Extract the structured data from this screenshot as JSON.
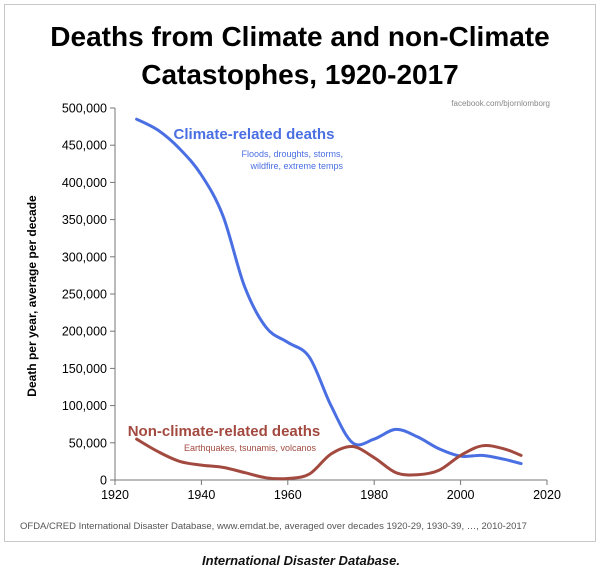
{
  "caption": "International Disaster Database.",
  "chart_data": {
    "type": "line",
    "title_lines": [
      "Deaths from Climate and non-Climate",
      "Catastophes, 1920-2017"
    ],
    "watermark": "facebook.com/bjornlomborg",
    "ylabel": "Death per year, average per decade",
    "xlabel": "",
    "xlim": [
      1920,
      2020
    ],
    "ylim": [
      0,
      500000
    ],
    "x_ticks": [
      1920,
      1940,
      1960,
      1980,
      2000,
      2020
    ],
    "y_ticks": [
      0,
      50000,
      100000,
      150000,
      200000,
      250000,
      300000,
      350000,
      400000,
      450000,
      500000
    ],
    "y_tick_labels": [
      "0",
      "50,000",
      "100,000",
      "150,000",
      "200,000",
      "250,000",
      "300,000",
      "350,000",
      "400,000",
      "450,000",
      "500,000"
    ],
    "grid": false,
    "series": [
      {
        "name": "Climate-related deaths",
        "subtitle_lines": [
          "Floods, droughts, storms,",
          "wildfire, extreme temps"
        ],
        "color": "#4a6fe3",
        "x": [
          1925,
          1930,
          1935,
          1940,
          1945,
          1950,
          1955,
          1960,
          1965,
          1970,
          1975,
          1980,
          1985,
          1990,
          1995,
          2000,
          2005,
          2010,
          2014
        ],
        "values": [
          485000,
          470000,
          445000,
          410000,
          355000,
          260000,
          205000,
          185000,
          165000,
          100000,
          50000,
          55000,
          68000,
          58000,
          42000,
          32000,
          33000,
          28000,
          22000
        ]
      },
      {
        "name": "Non-climate-related deaths",
        "subtitle_lines": [
          "Earthquakes, tsunamis, volcanos"
        ],
        "color": "#a34a40",
        "x": [
          1925,
          1930,
          1935,
          1940,
          1945,
          1950,
          1955,
          1960,
          1965,
          1970,
          1975,
          1980,
          1985,
          1990,
          1995,
          2000,
          2005,
          2010,
          2014
        ],
        "values": [
          55000,
          38000,
          25000,
          20000,
          17000,
          10000,
          3000,
          2000,
          8000,
          35000,
          45000,
          30000,
          10000,
          7000,
          13000,
          33000,
          46000,
          42000,
          33000
        ]
      }
    ],
    "footnote": "OFDA/CRED International Disaster Database, www.emdat.be, averaged over decades 1920-29,  1930-39,  …, 2010-2017"
  }
}
